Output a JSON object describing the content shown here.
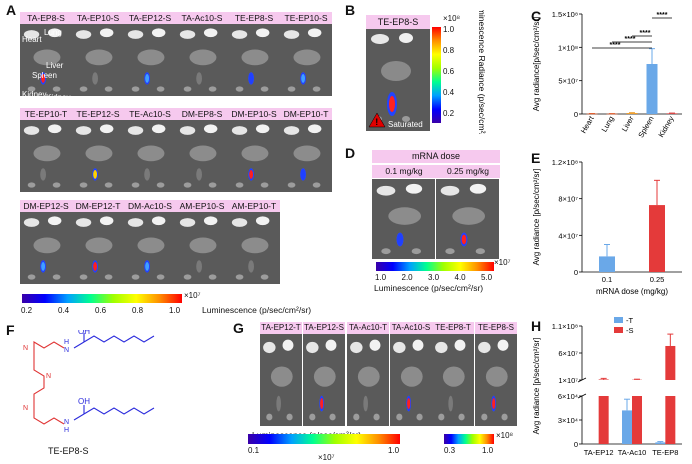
{
  "panels": {
    "A": {
      "label": "A",
      "rows": [
        [
          "TA-EP8-S",
          "TA-EP10-S",
          "TA-EP12-S",
          "TA-Ac10-S",
          "TE-EP8-S",
          "TE-EP10-S"
        ],
        [
          "TE-EP10-T",
          "TE-EP12-S",
          "TE-Ac10-S",
          "DM-EP8-S",
          "DM-EP10-S",
          "DM-EP10-T"
        ],
        [
          "DM-EP12-S",
          "DM-EP12-T",
          "DM-Ac10-S",
          "AM-EP10-S",
          "AM-EP10-T"
        ]
      ],
      "organs": {
        "heart": "Heart",
        "lung": "Lung",
        "liver": "Liver",
        "spleen": "Spleen",
        "kidney1": "Kidney",
        "kidney2": "Kidney"
      },
      "colorbar": {
        "ticks": [
          "0.2",
          "0.4",
          "0.6",
          "0.8",
          "1.0"
        ],
        "exponent": "×10⁷",
        "label": "Luminescence (p/sec/cm²/sr)"
      }
    },
    "B": {
      "label": "B",
      "title": "TE-EP8-S",
      "saturated": "Saturated",
      "colorbar": {
        "ticks": [
          "1.0",
          "0.8",
          "0.6",
          "0.4",
          "0.2"
        ],
        "exponent": "×10⁸",
        "label": "Luminescence Radiance (p/sec/cm²/sr)"
      }
    },
    "C": {
      "label": "C",
      "sig": "****"
    },
    "D": {
      "label": "D",
      "title": "mRNA dose",
      "doses": [
        "0.1 mg/kg",
        "0.25 mg/kg"
      ],
      "colorbar": {
        "ticks": [
          "1.0",
          "2.0",
          "3.0",
          "4.0",
          "5.0"
        ],
        "exponent": "×10⁷",
        "label": "Luminescence  (p/sec/cm²/sr)"
      }
    },
    "E": {
      "label": "E"
    },
    "F": {
      "label": "F",
      "oh1": "OH",
      "oh2": "OH",
      "nh": "H",
      "n": "N",
      "name": "TE-EP8-S"
    },
    "G": {
      "label": "G",
      "groups": [
        [
          "TA-EP12-T",
          "TA-EP12-S"
        ],
        [
          "TA-Ac10-T",
          "TA-Ac10-S"
        ],
        [
          "TE-EP8-T",
          "TE-EP8-S"
        ]
      ],
      "cb_label": "Luminescence (p/sec/cm²/sr)",
      "cb1": {
        "ticks": [
          "0.1",
          "1.0"
        ],
        "exponent": "×10⁷"
      },
      "cb2": {
        "ticks": [
          "0.3",
          "1.0"
        ],
        "exponent": "×10⁸"
      }
    },
    "H": {
      "label": "H"
    }
  },
  "chart_data": [
    {
      "panel": "C",
      "type": "bar",
      "categories": [
        "Heart",
        "Lung",
        "Liver",
        "Spleen",
        "Kidney"
      ],
      "values": [
        500000,
        400000,
        1500000,
        75000000,
        1000000
      ],
      "errors": [
        200000,
        200000,
        500000,
        23000000,
        400000
      ],
      "colors": [
        "#e05b2b",
        "#e05b2b",
        "#f0a030",
        "#6aa8e8",
        "#d94646"
      ],
      "ylabel": "Avg radiance[p/sec/cm²/sr]",
      "ylim": [
        0,
        150000000
      ],
      "yticks": [
        [
          "0",
          "0"
        ],
        [
          "50000000",
          "5×10⁷"
        ],
        [
          "100000000",
          "1×10⁸"
        ],
        [
          "150000000",
          "1.5×10⁸"
        ]
      ]
    },
    {
      "panel": "E",
      "type": "bar",
      "categories": [
        "0.1",
        "0.25"
      ],
      "values": [
        17000000,
        73000000
      ],
      "errors": [
        13000000,
        27000000
      ],
      "colors": [
        "#6aa8e8",
        "#e43a3a"
      ],
      "xlabel": "mRNA dose (mg/kg)",
      "ylabel": "Avg radiance [p/sec/cm²/sr]",
      "ylim": [
        0,
        120000000
      ],
      "yticks": [
        [
          "0",
          "0"
        ],
        [
          "40000000",
          "4×10⁷"
        ],
        [
          "80000000",
          "8×10⁷"
        ],
        [
          "120000000",
          "1.2×10⁸"
        ]
      ]
    },
    {
      "panel": "H",
      "type": "bar",
      "categories": [
        "TA-EP12",
        "TA-Ac10",
        "TE-EP8"
      ],
      "series": [
        {
          "name": "-T",
          "color": "#6aa8e8",
          "values": [
            0,
            42000,
            2000
          ]
        },
        {
          "name": "-S",
          "color": "#e43a3a",
          "values": [
            11000000,
            10500000,
            73000000
          ]
        }
      ],
      "errors": [
        [
          0,
          14000,
          1000
        ],
        [
          2000000,
          1000000,
          22000000
        ]
      ],
      "ylabel": "Avg radiance [p/sec/cm²/sr]",
      "yticks": [
        [
          "0",
          "0"
        ],
        [
          "30000",
          "3×10⁴"
        ],
        [
          "60000",
          "6×10⁴"
        ],
        [
          "10000000",
          "1×10⁷"
        ],
        [
          "60000000",
          "6×10⁷"
        ],
        [
          "110000000",
          "1.1×10⁸"
        ]
      ]
    }
  ]
}
